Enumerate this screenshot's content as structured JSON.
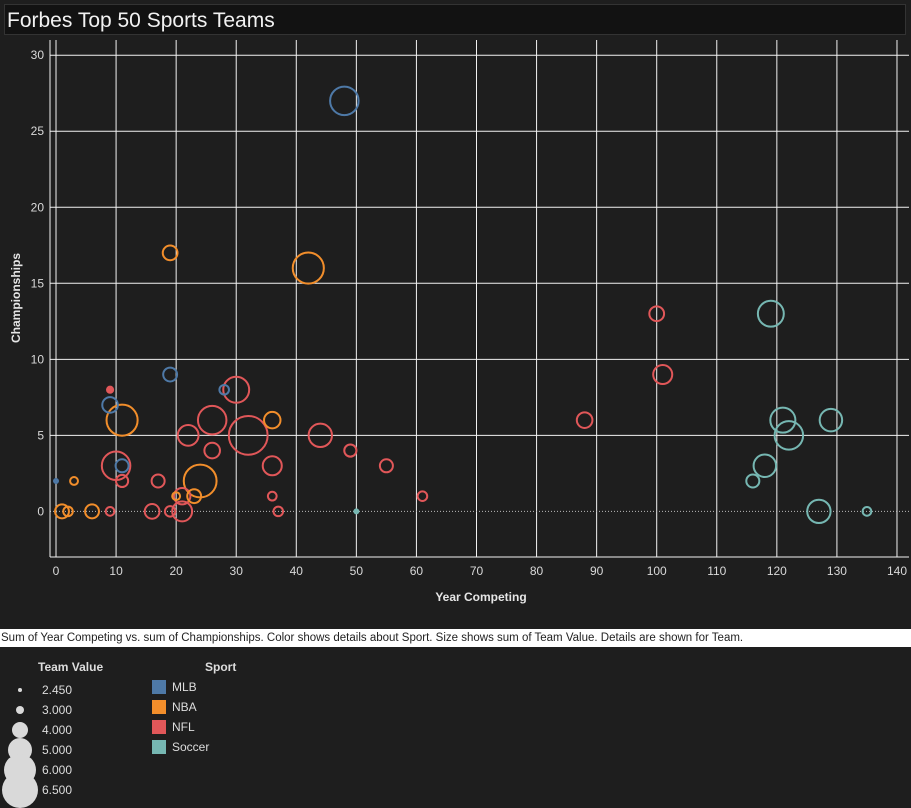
{
  "header": {
    "title": "Forbes Top 50 Sports Teams"
  },
  "caption": "Sum of Year Competing vs. sum of Championships.  Color shows details about Sport.  Size shows sum of Team Value.  Details are shown for Team.",
  "legend": {
    "size_title": "Team Value",
    "sizes": [
      "2.450",
      "3.000",
      "4.000",
      "5.000",
      "6.000",
      "6.500"
    ],
    "sport_title": "Sport",
    "sports": [
      {
        "name": "MLB",
        "color": "#4e79a7"
      },
      {
        "name": "NBA",
        "color": "#f28e2b"
      },
      {
        "name": "NFL",
        "color": "#e15759"
      },
      {
        "name": "Soccer",
        "color": "#76b7b2"
      }
    ]
  },
  "chart_data": {
    "type": "scatter",
    "title": "Forbes Top 50 Sports Teams",
    "xlabel": "Year Competing",
    "ylabel": "Championships",
    "xlim": [
      -1,
      142
    ],
    "ylim": [
      -3,
      31
    ],
    "x_ticks": [
      0,
      10,
      20,
      30,
      40,
      50,
      60,
      70,
      80,
      90,
      100,
      110,
      120,
      130,
      140
    ],
    "y_ticks": [
      0,
      5,
      10,
      15,
      20,
      25,
      30
    ],
    "grid": true,
    "size_field": "Team Value",
    "color_field": "Sport",
    "points": [
      {
        "x": 48,
        "y": 27,
        "sport": "MLB",
        "value": 5.3
      },
      {
        "x": 19,
        "y": 9,
        "sport": "MLB",
        "value": 3.6
      },
      {
        "x": 28,
        "y": 8,
        "sport": "MLB",
        "value": 3.1
      },
      {
        "x": 9,
        "y": 7,
        "sport": "MLB",
        "value": 3.8
      },
      {
        "x": 11,
        "y": 3,
        "sport": "MLB",
        "value": 3.5
      },
      {
        "x": 0,
        "y": 2,
        "sport": "MLB",
        "value": 2.45
      },
      {
        "x": 19,
        "y": 17,
        "sport": "NBA",
        "value": 3.7
      },
      {
        "x": 42,
        "y": 16,
        "sport": "NBA",
        "value": 5.6
      },
      {
        "x": 11,
        "y": 6,
        "sport": "NBA",
        "value": 5.6
      },
      {
        "x": 36,
        "y": 6,
        "sport": "NBA",
        "value": 3.9
      },
      {
        "x": 3,
        "y": 2,
        "sport": "NBA",
        "value": 2.9
      },
      {
        "x": 24,
        "y": 2,
        "sport": "NBA",
        "value": 5.8
      },
      {
        "x": 20,
        "y": 1,
        "sport": "NBA",
        "value": 2.9
      },
      {
        "x": 23,
        "y": 1,
        "sport": "NBA",
        "value": 3.6
      },
      {
        "x": 1,
        "y": 0,
        "sport": "NBA",
        "value": 3.6
      },
      {
        "x": 2,
        "y": 0,
        "sport": "NBA",
        "value": 3.1
      },
      {
        "x": 6,
        "y": 0,
        "sport": "NBA",
        "value": 3.6
      },
      {
        "x": 100,
        "y": 13,
        "sport": "NFL",
        "value": 3.7
      },
      {
        "x": 101,
        "y": 9,
        "sport": "NFL",
        "value": 4.2
      },
      {
        "x": 30,
        "y": 8,
        "sport": "NFL",
        "value": 5.0
      },
      {
        "x": 9,
        "y": 8,
        "sport": "NFL",
        "value": 2.7
      },
      {
        "x": 88,
        "y": 6,
        "sport": "NFL",
        "value": 3.8
      },
      {
        "x": 26,
        "y": 6,
        "sport": "NFL",
        "value": 5.3
      },
      {
        "x": 32,
        "y": 5,
        "sport": "NFL",
        "value": 6.5
      },
      {
        "x": 22,
        "y": 5,
        "sport": "NFL",
        "value": 4.4
      },
      {
        "x": 44,
        "y": 5,
        "sport": "NFL",
        "value": 4.7
      },
      {
        "x": 26,
        "y": 4,
        "sport": "NFL",
        "value": 3.8
      },
      {
        "x": 49,
        "y": 4,
        "sport": "NFL",
        "value": 3.4
      },
      {
        "x": 10,
        "y": 3,
        "sport": "NFL",
        "value": 5.3
      },
      {
        "x": 36,
        "y": 3,
        "sport": "NFL",
        "value": 4.2
      },
      {
        "x": 55,
        "y": 3,
        "sport": "NFL",
        "value": 3.5
      },
      {
        "x": 17,
        "y": 2,
        "sport": "NFL",
        "value": 3.5
      },
      {
        "x": 11,
        "y": 2,
        "sport": "NFL",
        "value": 3.4
      },
      {
        "x": 61,
        "y": 1,
        "sport": "NFL",
        "value": 3.1
      },
      {
        "x": 36,
        "y": 1,
        "sport": "NFL",
        "value": 3.0
      },
      {
        "x": 21,
        "y": 1,
        "sport": "NFL",
        "value": 3.9
      },
      {
        "x": 16,
        "y": 0,
        "sport": "NFL",
        "value": 3.7
      },
      {
        "x": 19,
        "y": 0,
        "sport": "NFL",
        "value": 3.2
      },
      {
        "x": 21,
        "y": 0,
        "sport": "NFL",
        "value": 4.3
      },
      {
        "x": 37,
        "y": 0,
        "sport": "NFL",
        "value": 3.1
      },
      {
        "x": 9,
        "y": 0,
        "sport": "NFL",
        "value": 3.0
      },
      {
        "x": 119,
        "y": 13,
        "sport": "Soccer",
        "value": 5.0
      },
      {
        "x": 121,
        "y": 6,
        "sport": "Soccer",
        "value": 4.9
      },
      {
        "x": 129,
        "y": 6,
        "sport": "Soccer",
        "value": 4.6
      },
      {
        "x": 122,
        "y": 5,
        "sport": "Soccer",
        "value": 5.3
      },
      {
        "x": 118,
        "y": 3,
        "sport": "Soccer",
        "value": 4.6
      },
      {
        "x": 116,
        "y": 2,
        "sport": "Soccer",
        "value": 3.5
      },
      {
        "x": 127,
        "y": 0,
        "sport": "Soccer",
        "value": 4.7
      },
      {
        "x": 135,
        "y": 0,
        "sport": "Soccer",
        "value": 3.0
      },
      {
        "x": 50,
        "y": 0,
        "sport": "Soccer",
        "value": 2.45
      }
    ]
  }
}
